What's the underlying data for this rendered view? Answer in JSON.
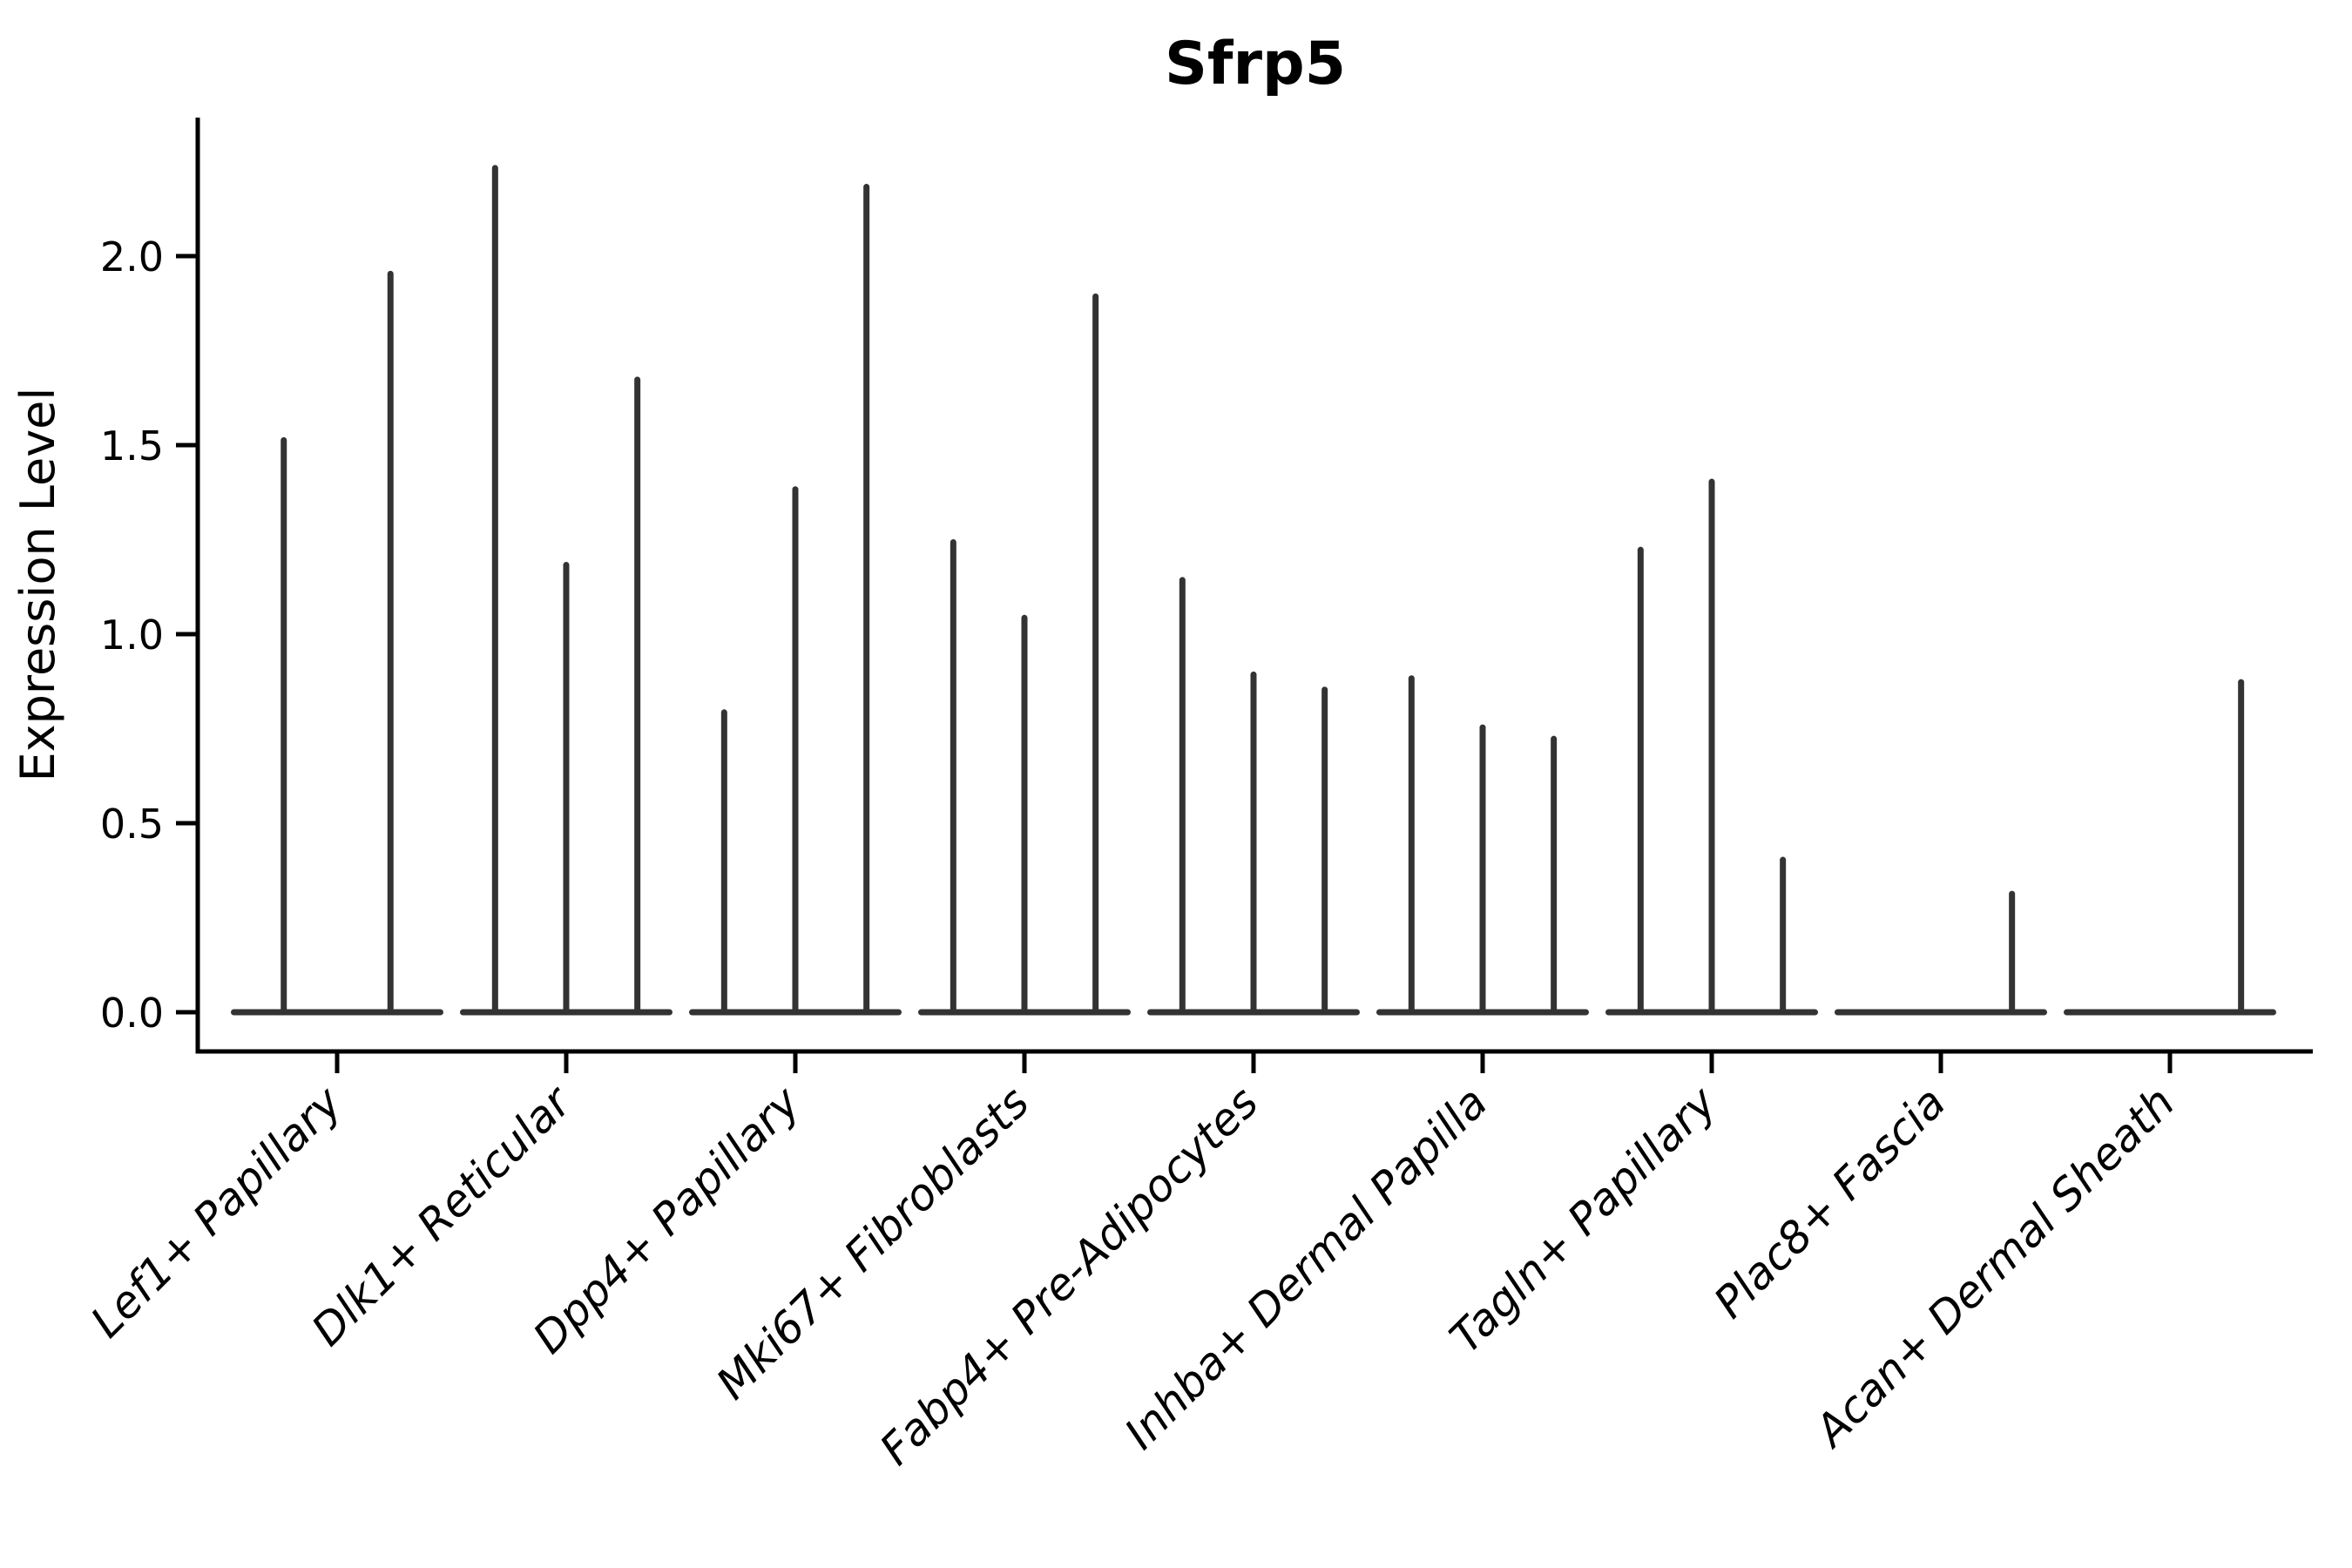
{
  "chart_data": {
    "type": "violin",
    "title": "Sfrp5",
    "xlabel": "",
    "ylabel": "Expression Level",
    "legend": "none",
    "grid": false,
    "ylim": [
      -0.12,
      2.37
    ],
    "yticks": [
      {
        "label": "0.0",
        "value": 0.0
      },
      {
        "label": "0.5",
        "value": 0.5
      },
      {
        "label": "1.0",
        "value": 1.0
      },
      {
        "label": "1.5",
        "value": 1.5
      },
      {
        "label": "2.0",
        "value": 2.0
      }
    ],
    "categories": [
      "Lef1+ Papillary",
      "Dlk1+ Reticular",
      "Dpp4+ Papillary",
      "Mki67+ Fibroblasts",
      "Fabp4+ Pre-Adipocytes",
      "Inhba+ Dermal Papilla",
      "Tagln+ Papillary",
      "Plac8+ Fascia",
      "Acan+ Dermal Sheath"
    ],
    "groups": [
      {
        "category": "Lef1+ Papillary",
        "spike_maxima": [
          1.52,
          1.96
        ]
      },
      {
        "category": "Dlk1+ Reticular",
        "spike_maxima": [
          2.24,
          1.19,
          1.68
        ]
      },
      {
        "category": "Dpp4+ Papillary",
        "spike_maxima": [
          0.8,
          1.39,
          2.19
        ]
      },
      {
        "category": "Mki67+ Fibroblasts",
        "spike_maxima": [
          1.25,
          1.05,
          1.9
        ]
      },
      {
        "category": "Fabp4+ Pre-Adipocytes",
        "spike_maxima": [
          1.15,
          0.9,
          0.86
        ]
      },
      {
        "category": "Inhba+ Dermal Papilla",
        "spike_maxima": [
          0.89,
          0.76,
          0.73
        ]
      },
      {
        "category": "Tagln+ Papillary",
        "spike_maxima": [
          1.23,
          1.41,
          0.41
        ]
      },
      {
        "category": "Plac8+ Fascia",
        "spike_maxima": [
          0,
          0,
          0.32
        ]
      },
      {
        "category": "Acan+ Dermal Sheath",
        "spike_maxima": [
          0,
          0,
          0.88
        ]
      }
    ],
    "colors": {
      "violin": "#333333",
      "axis": "#000000",
      "text": "#000000",
      "background": "#ffffff"
    }
  }
}
